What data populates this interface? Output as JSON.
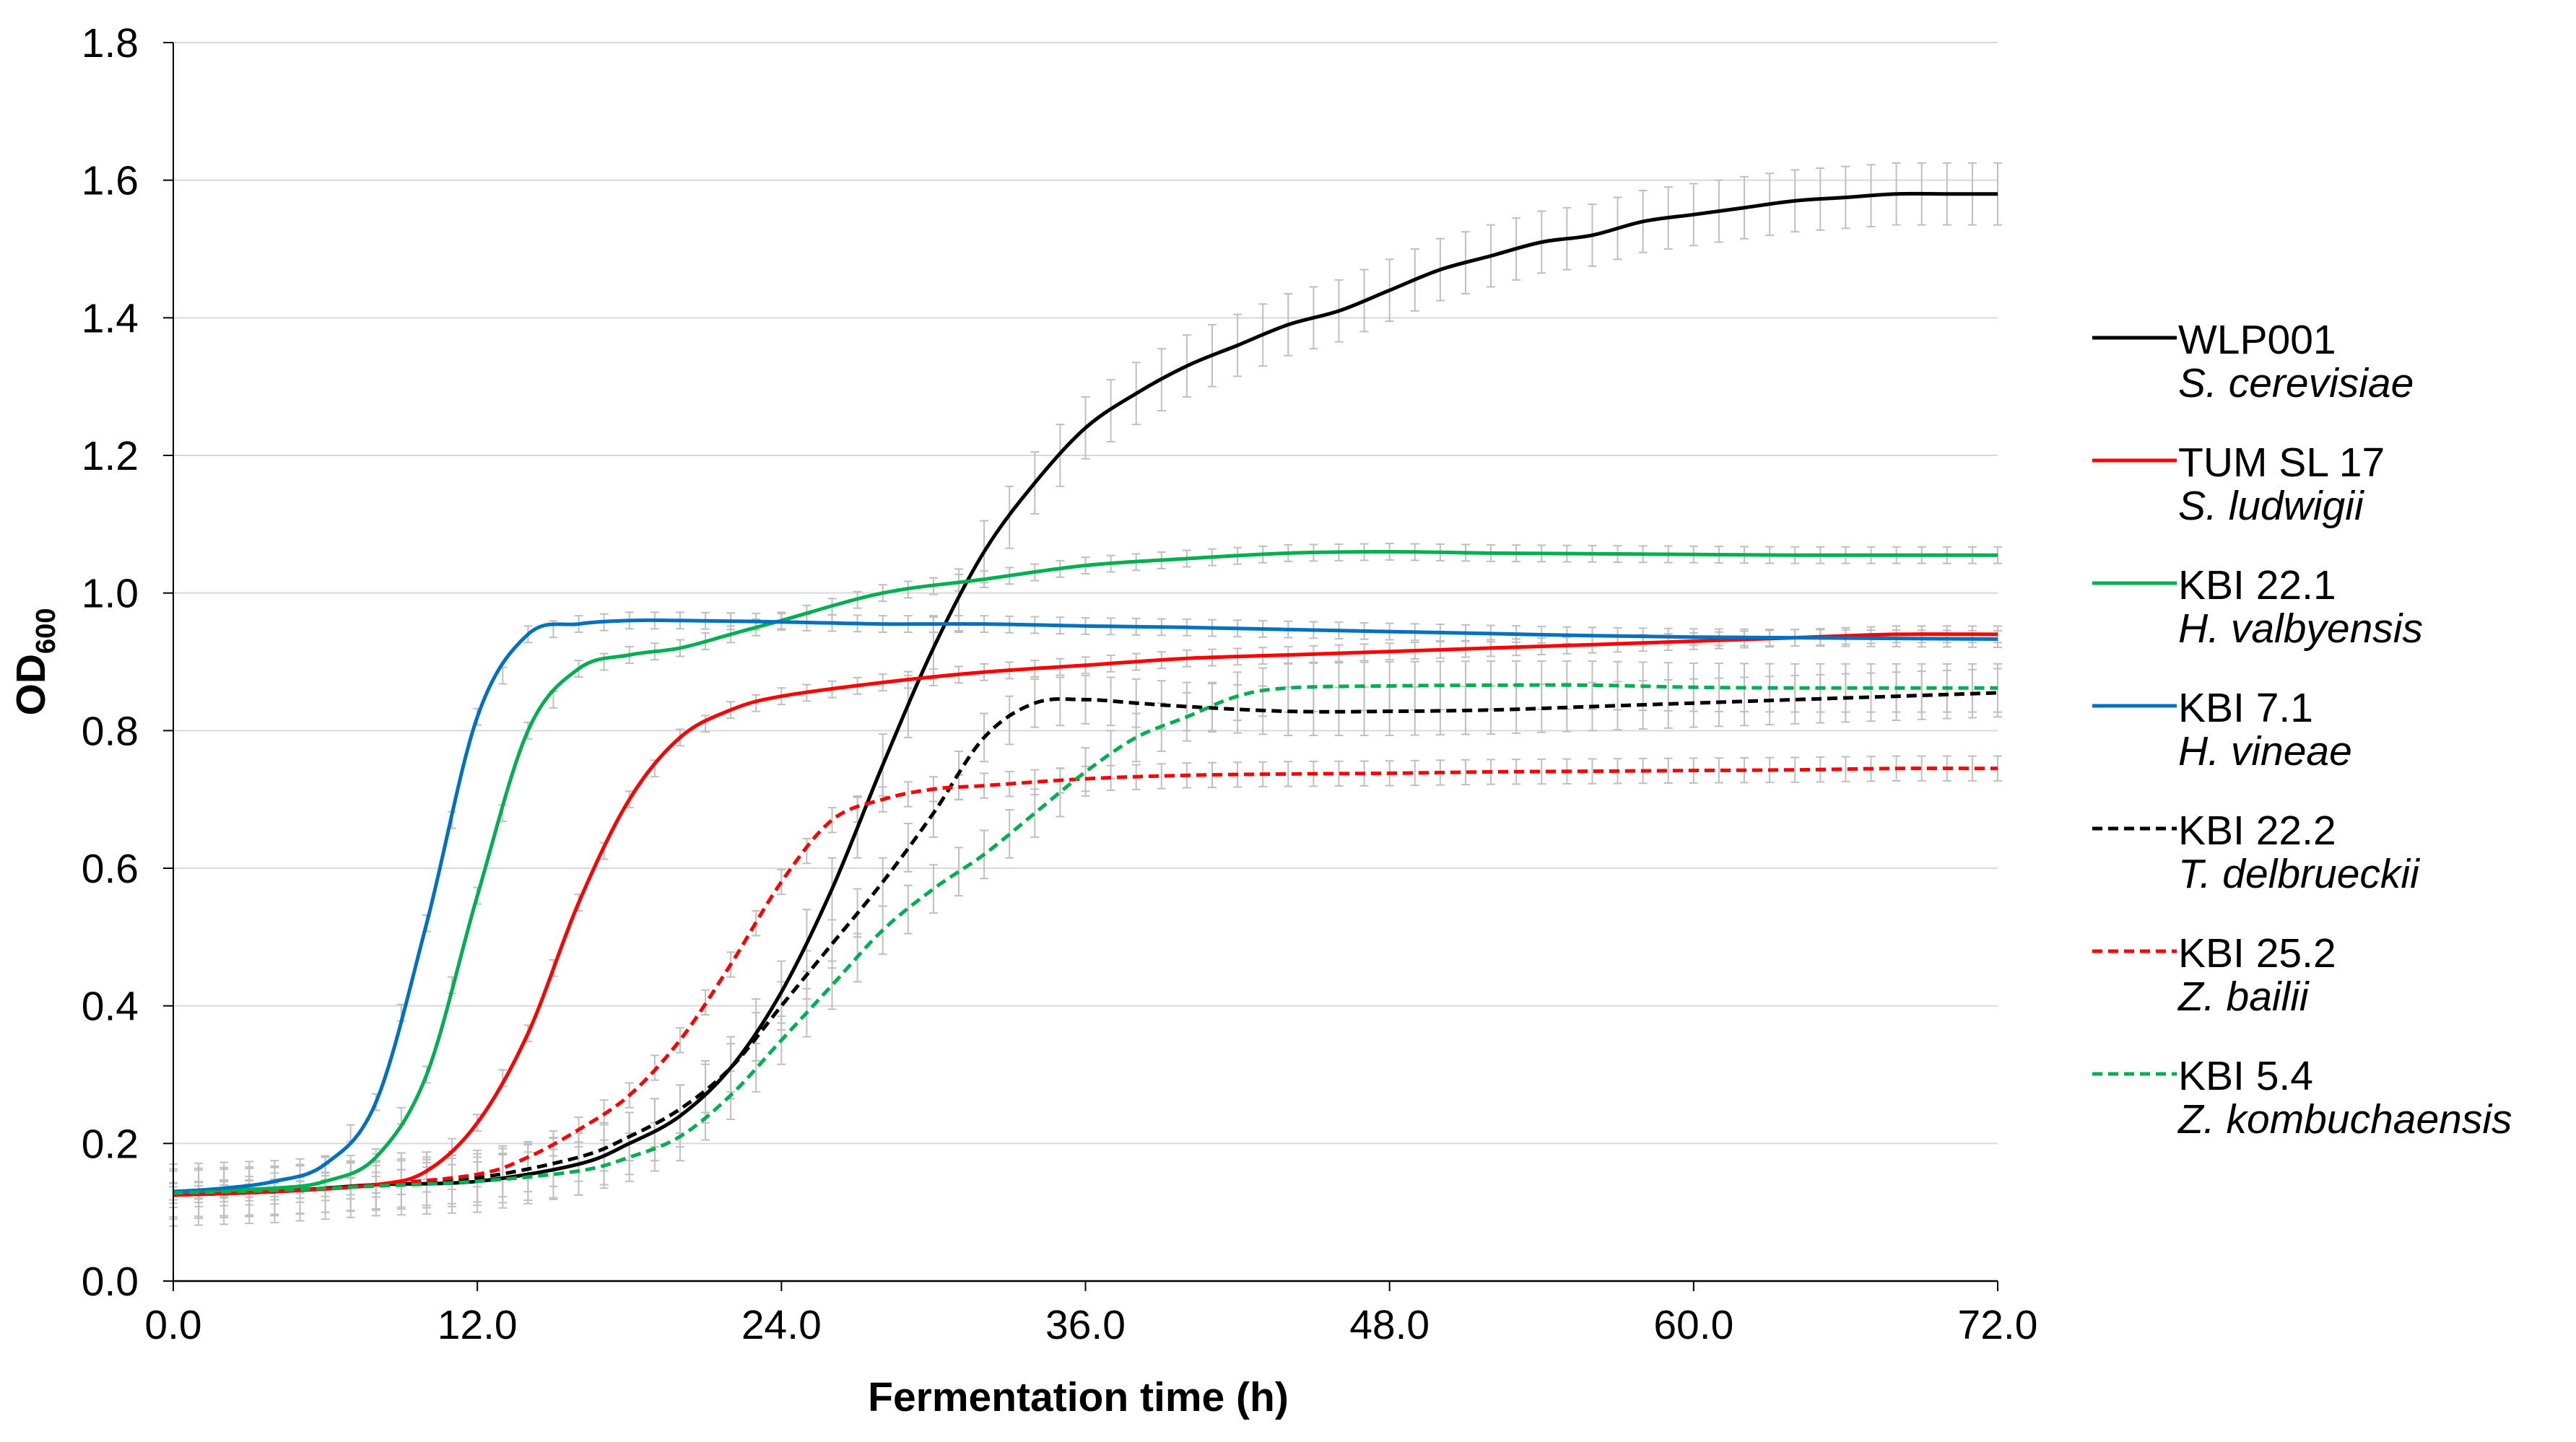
{
  "chart_data": {
    "type": "line",
    "title": "",
    "xlabel": "Fermentation time (h)",
    "ylabel": "OD",
    "ylabel_subscript": "600",
    "xlim": [
      0,
      72
    ],
    "ylim": [
      0,
      1.8
    ],
    "x_ticks": [
      0,
      12,
      24,
      36,
      48,
      60,
      72
    ],
    "x_tick_labels": [
      "0.0",
      "12.0",
      "24.0",
      "36.0",
      "48.0",
      "60.0",
      "72.0"
    ],
    "y_ticks": [
      0,
      0.2,
      0.4,
      0.6,
      0.8,
      1.0,
      1.2,
      1.4,
      1.6,
      1.8
    ],
    "y_tick_labels": [
      "0.0",
      "0.2",
      "0.4",
      "0.6",
      "0.8",
      "1.0",
      "1.2",
      "1.4",
      "1.6",
      "1.8"
    ],
    "grid": "horizontal",
    "error_bar_color": "#bfbfbf",
    "legend_position": "right",
    "series": [
      {
        "name": "WLP001",
        "species": "S. cerevisiae",
        "color": "#000000",
        "dash": false,
        "points": [
          [
            0,
            0.125
          ],
          [
            4,
            0.13
          ],
          [
            8,
            0.14
          ],
          [
            12,
            0.145
          ],
          [
            16,
            0.17
          ],
          [
            18,
            0.2
          ],
          [
            20,
            0.24
          ],
          [
            22,
            0.31
          ],
          [
            24,
            0.42
          ],
          [
            26,
            0.57
          ],
          [
            28,
            0.75
          ],
          [
            30,
            0.92
          ],
          [
            32,
            1.06
          ],
          [
            34,
            1.16
          ],
          [
            36,
            1.24
          ],
          [
            38,
            1.29
          ],
          [
            40,
            1.33
          ],
          [
            42,
            1.36
          ],
          [
            44,
            1.39
          ],
          [
            46,
            1.41
          ],
          [
            48,
            1.44
          ],
          [
            50,
            1.47
          ],
          [
            52,
            1.49
          ],
          [
            54,
            1.51
          ],
          [
            56,
            1.52
          ],
          [
            58,
            1.54
          ],
          [
            60,
            1.55
          ],
          [
            62,
            1.56
          ],
          [
            64,
            1.57
          ],
          [
            66,
            1.575
          ],
          [
            68,
            1.58
          ],
          [
            70,
            1.58
          ],
          [
            72,
            1.58
          ]
        ],
        "error": 0.045
      },
      {
        "name": "TUM SL 17",
        "species": "S. ludwigii",
        "color": "#ff0000",
        "dash": false,
        "points": [
          [
            0,
            0.125
          ],
          [
            4,
            0.13
          ],
          [
            8,
            0.14
          ],
          [
            10,
            0.16
          ],
          [
            12,
            0.23
          ],
          [
            14,
            0.36
          ],
          [
            16,
            0.55
          ],
          [
            18,
            0.7
          ],
          [
            20,
            0.79
          ],
          [
            22,
            0.83
          ],
          [
            24,
            0.85
          ],
          [
            28,
            0.87
          ],
          [
            32,
            0.885
          ],
          [
            36,
            0.895
          ],
          [
            40,
            0.905
          ],
          [
            44,
            0.91
          ],
          [
            48,
            0.915
          ],
          [
            52,
            0.92
          ],
          [
            56,
            0.925
          ],
          [
            60,
            0.93
          ],
          [
            64,
            0.935
          ],
          [
            68,
            0.94
          ],
          [
            72,
            0.94
          ]
        ],
        "error": 0.012
      },
      {
        "name": "KBI 22.1",
        "species": "H. valbyensis",
        "color": "#00b050",
        "dash": false,
        "points": [
          [
            0,
            0.13
          ],
          [
            4,
            0.135
          ],
          [
            6,
            0.145
          ],
          [
            8,
            0.18
          ],
          [
            10,
            0.3
          ],
          [
            12,
            0.56
          ],
          [
            14,
            0.8
          ],
          [
            16,
            0.89
          ],
          [
            18,
            0.91
          ],
          [
            20,
            0.92
          ],
          [
            22,
            0.94
          ],
          [
            24,
            0.96
          ],
          [
            28,
            1.0
          ],
          [
            32,
            1.02
          ],
          [
            36,
            1.04
          ],
          [
            40,
            1.05
          ],
          [
            44,
            1.058
          ],
          [
            48,
            1.06
          ],
          [
            52,
            1.058
          ],
          [
            56,
            1.057
          ],
          [
            60,
            1.056
          ],
          [
            64,
            1.055
          ],
          [
            68,
            1.055
          ],
          [
            72,
            1.055
          ]
        ],
        "error": 0.012
      },
      {
        "name": "KBI 7.1",
        "species": "H. vineae",
        "color": "#0070c0",
        "dash": false,
        "points": [
          [
            0,
            0.13
          ],
          [
            2,
            0.135
          ],
          [
            4,
            0.145
          ],
          [
            6,
            0.17
          ],
          [
            8,
            0.26
          ],
          [
            10,
            0.52
          ],
          [
            12,
            0.82
          ],
          [
            14,
            0.94
          ],
          [
            16,
            0.955
          ],
          [
            18,
            0.96
          ],
          [
            20,
            0.96
          ],
          [
            24,
            0.958
          ],
          [
            28,
            0.955
          ],
          [
            32,
            0.955
          ],
          [
            36,
            0.952
          ],
          [
            40,
            0.95
          ],
          [
            44,
            0.947
          ],
          [
            48,
            0.944
          ],
          [
            52,
            0.941
          ],
          [
            56,
            0.938
          ],
          [
            60,
            0.936
          ],
          [
            64,
            0.935
          ],
          [
            68,
            0.934
          ],
          [
            72,
            0.933
          ]
        ],
        "error": 0.012
      },
      {
        "name": "KBI 22.2",
        "species": "T. delbrueckii",
        "color": "#000000",
        "dash": true,
        "points": [
          [
            0,
            0.125
          ],
          [
            4,
            0.13
          ],
          [
            8,
            0.14
          ],
          [
            12,
            0.15
          ],
          [
            16,
            0.18
          ],
          [
            18,
            0.21
          ],
          [
            20,
            0.25
          ],
          [
            22,
            0.31
          ],
          [
            24,
            0.4
          ],
          [
            26,
            0.49
          ],
          [
            28,
            0.58
          ],
          [
            30,
            0.68
          ],
          [
            32,
            0.79
          ],
          [
            34,
            0.84
          ],
          [
            36,
            0.845
          ],
          [
            38,
            0.84
          ],
          [
            40,
            0.835
          ],
          [
            44,
            0.828
          ],
          [
            48,
            0.828
          ],
          [
            52,
            0.83
          ],
          [
            56,
            0.835
          ],
          [
            60,
            0.84
          ],
          [
            64,
            0.845
          ],
          [
            68,
            0.85
          ],
          [
            72,
            0.855
          ]
        ],
        "error": 0.035
      },
      {
        "name": "KBI 25.2",
        "species": "Z. bailii",
        "color": "#ff0000",
        "dash": true,
        "points": [
          [
            0,
            0.125
          ],
          [
            4,
            0.13
          ],
          [
            8,
            0.14
          ],
          [
            12,
            0.155
          ],
          [
            14,
            0.18
          ],
          [
            16,
            0.22
          ],
          [
            18,
            0.27
          ],
          [
            20,
            0.35
          ],
          [
            22,
            0.46
          ],
          [
            24,
            0.58
          ],
          [
            26,
            0.67
          ],
          [
            28,
            0.7
          ],
          [
            30,
            0.715
          ],
          [
            32,
            0.72
          ],
          [
            36,
            0.73
          ],
          [
            40,
            0.735
          ],
          [
            44,
            0.737
          ],
          [
            48,
            0.738
          ],
          [
            52,
            0.74
          ],
          [
            56,
            0.741
          ],
          [
            60,
            0.742
          ],
          [
            64,
            0.743
          ],
          [
            68,
            0.745
          ],
          [
            72,
            0.745
          ]
        ],
        "error": 0.018
      },
      {
        "name": "KBI 5.4",
        "species": "Z. kombuchaensis",
        "color": "#00b050",
        "dash": true,
        "points": [
          [
            0,
            0.128
          ],
          [
            4,
            0.132
          ],
          [
            8,
            0.138
          ],
          [
            12,
            0.145
          ],
          [
            16,
            0.16
          ],
          [
            18,
            0.18
          ],
          [
            20,
            0.21
          ],
          [
            22,
            0.27
          ],
          [
            24,
            0.35
          ],
          [
            26,
            0.43
          ],
          [
            28,
            0.51
          ],
          [
            30,
            0.57
          ],
          [
            32,
            0.62
          ],
          [
            34,
            0.68
          ],
          [
            36,
            0.74
          ],
          [
            38,
            0.79
          ],
          [
            40,
            0.82
          ],
          [
            42,
            0.85
          ],
          [
            44,
            0.862
          ],
          [
            48,
            0.865
          ],
          [
            52,
            0.866
          ],
          [
            56,
            0.866
          ],
          [
            60,
            0.863
          ],
          [
            64,
            0.862
          ],
          [
            68,
            0.862
          ],
          [
            72,
            0.862
          ]
        ],
        "error": 0.035
      }
    ]
  }
}
